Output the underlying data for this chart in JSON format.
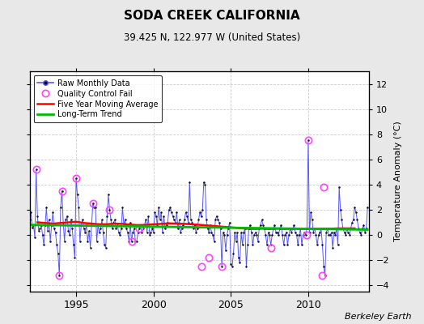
{
  "title": "SODA CREEK CALIFORNIA",
  "subtitle": "39.425 N, 122.977 W (United States)",
  "ylabel_right": "Temperature Anomaly (°C)",
  "attribution": "Berkeley Earth",
  "xlim": [
    1992.0,
    2013.92
  ],
  "ylim": [
    -4.5,
    13.0
  ],
  "yticks": [
    -4,
    -2,
    0,
    2,
    4,
    6,
    8,
    10,
    12
  ],
  "xticks": [
    1995,
    2000,
    2005,
    2010
  ],
  "bg_color": "#e8e8e8",
  "plot_bg_color": "#ffffff",
  "raw_color": "#5555ff",
  "marker_color": "#111111",
  "qc_color": "#ff44ff",
  "ma_color": "#ff0000",
  "trend_color": "#00bb00",
  "raw_data_x": [
    1992.0,
    1992.083,
    1992.167,
    1992.25,
    1992.333,
    1992.417,
    1992.5,
    1992.583,
    1992.667,
    1992.75,
    1992.833,
    1992.917,
    1993.0,
    1993.083,
    1993.167,
    1993.25,
    1993.333,
    1993.417,
    1993.5,
    1993.583,
    1993.667,
    1993.75,
    1993.833,
    1993.917,
    1994.0,
    1994.083,
    1994.167,
    1994.25,
    1994.333,
    1994.417,
    1994.5,
    1994.583,
    1994.667,
    1994.75,
    1994.833,
    1994.917,
    1995.0,
    1995.083,
    1995.167,
    1995.25,
    1995.333,
    1995.417,
    1995.5,
    1995.583,
    1995.667,
    1995.75,
    1995.833,
    1995.917,
    1996.0,
    1996.083,
    1996.167,
    1996.25,
    1996.333,
    1996.417,
    1996.5,
    1996.583,
    1996.667,
    1996.75,
    1996.833,
    1996.917,
    1997.0,
    1997.083,
    1997.167,
    1997.25,
    1997.333,
    1997.417,
    1997.5,
    1997.583,
    1997.667,
    1997.75,
    1997.833,
    1997.917,
    1998.0,
    1998.083,
    1998.167,
    1998.25,
    1998.333,
    1998.417,
    1998.5,
    1998.583,
    1998.667,
    1998.75,
    1998.833,
    1998.917,
    1999.0,
    1999.083,
    1999.167,
    1999.25,
    1999.333,
    1999.417,
    1999.5,
    1999.583,
    1999.667,
    1999.75,
    1999.833,
    1999.917,
    2000.0,
    2000.083,
    2000.167,
    2000.25,
    2000.333,
    2000.417,
    2000.5,
    2000.583,
    2000.667,
    2000.75,
    2000.833,
    2000.917,
    2001.0,
    2001.083,
    2001.167,
    2001.25,
    2001.333,
    2001.417,
    2001.5,
    2001.583,
    2001.667,
    2001.75,
    2001.833,
    2001.917,
    2002.0,
    2002.083,
    2002.167,
    2002.25,
    2002.333,
    2002.417,
    2002.5,
    2002.583,
    2002.667,
    2002.75,
    2002.833,
    2002.917,
    2003.0,
    2003.083,
    2003.167,
    2003.25,
    2003.333,
    2003.417,
    2003.5,
    2003.583,
    2003.667,
    2003.75,
    2003.833,
    2003.917,
    2004.0,
    2004.083,
    2004.167,
    2004.25,
    2004.333,
    2004.417,
    2004.5,
    2004.583,
    2004.667,
    2004.75,
    2004.833,
    2004.917,
    2005.0,
    2005.083,
    2005.167,
    2005.25,
    2005.333,
    2005.417,
    2005.5,
    2005.583,
    2005.667,
    2005.75,
    2005.833,
    2005.917,
    2006.0,
    2006.083,
    2006.167,
    2006.25,
    2006.333,
    2006.417,
    2006.5,
    2006.583,
    2006.667,
    2006.75,
    2006.833,
    2006.917,
    2007.0,
    2007.083,
    2007.167,
    2007.25,
    2007.333,
    2007.417,
    2007.5,
    2007.583,
    2007.667,
    2007.75,
    2007.833,
    2007.917,
    2008.0,
    2008.083,
    2008.167,
    2008.25,
    2008.333,
    2008.417,
    2008.5,
    2008.583,
    2008.667,
    2008.75,
    2008.833,
    2008.917,
    2009.0,
    2009.083,
    2009.167,
    2009.25,
    2009.333,
    2009.417,
    2009.5,
    2009.583,
    2009.667,
    2009.75,
    2009.833,
    2009.917,
    2010.0,
    2010.083,
    2010.167,
    2010.25,
    2010.333,
    2010.417,
    2010.5,
    2010.583,
    2010.667,
    2010.75,
    2010.833,
    2010.917,
    2011.0,
    2011.083,
    2011.167,
    2011.25,
    2011.333,
    2011.417,
    2011.5,
    2011.583,
    2011.667,
    2011.75,
    2011.833,
    2011.917,
    2012.0,
    2012.083,
    2012.167,
    2012.25,
    2012.333,
    2012.417,
    2012.5,
    2012.583,
    2012.667,
    2012.75,
    2012.833,
    2012.917,
    2013.0,
    2013.083,
    2013.167,
    2013.25,
    2013.333,
    2013.417,
    2013.5,
    2013.583,
    2013.667,
    2013.75,
    2013.833
  ],
  "raw_data_y": [
    1.2,
    1.8,
    0.6,
    0.8,
    -0.2,
    5.2,
    1.5,
    0.3,
    0.5,
    0.8,
    0.0,
    -0.8,
    0.8,
    2.2,
    0.3,
    1.2,
    -0.5,
    0.8,
    1.8,
    0.5,
    0.2,
    -0.8,
    -1.5,
    -3.2,
    2.2,
    3.5,
    1.0,
    -0.5,
    1.2,
    1.5,
    0.3,
    0.0,
    1.2,
    0.5,
    -0.8,
    -1.8,
    4.5,
    3.2,
    2.2,
    -0.5,
    0.8,
    1.2,
    0.5,
    0.2,
    0.8,
    -0.5,
    0.3,
    -1.0,
    0.8,
    2.5,
    2.2,
    2.2,
    -0.5,
    0.8,
    0.2,
    0.5,
    1.2,
    0.2,
    -0.8,
    -1.0,
    1.5,
    3.2,
    2.0,
    1.2,
    0.5,
    1.0,
    1.2,
    0.5,
    0.8,
    0.2,
    0.0,
    0.5,
    2.2,
    0.8,
    1.2,
    0.5,
    0.2,
    -0.5,
    1.0,
    -0.5,
    0.2,
    0.5,
    -0.5,
    -0.5,
    0.2,
    0.5,
    0.8,
    0.2,
    0.5,
    0.8,
    1.2,
    0.2,
    1.5,
    0.0,
    0.2,
    0.5,
    0.2,
    1.8,
    1.5,
    0.8,
    2.2,
    1.2,
    1.8,
    0.2,
    1.5,
    0.5,
    0.8,
    1.0,
    2.0,
    2.2,
    1.8,
    1.5,
    1.2,
    1.0,
    1.8,
    0.5,
    1.2,
    0.2,
    0.5,
    0.8,
    1.2,
    1.8,
    1.5,
    1.0,
    4.2,
    1.2,
    1.0,
    0.5,
    0.8,
    0.2,
    0.5,
    1.2,
    1.8,
    1.5,
    2.0,
    4.2,
    4.0,
    1.2,
    0.5,
    0.2,
    0.8,
    0.2,
    0.0,
    -0.5,
    1.2,
    1.5,
    1.2,
    1.0,
    0.5,
    -2.5,
    0.2,
    0.0,
    -1.2,
    0.0,
    0.5,
    1.0,
    -2.3,
    -2.5,
    -1.5,
    0.2,
    -0.5,
    0.2,
    -1.8,
    -2.2,
    0.2,
    -0.8,
    0.2,
    0.5,
    -2.5,
    -0.8,
    0.5,
    0.8,
    0.2,
    -0.8,
    0.0,
    0.2,
    0.0,
    -0.5,
    0.5,
    0.8,
    1.2,
    0.8,
    0.5,
    0.0,
    -0.8,
    0.2,
    0.0,
    -0.8,
    0.0,
    0.5,
    0.8,
    0.2,
    0.2,
    0.0,
    0.5,
    0.8,
    0.0,
    -0.8,
    0.0,
    0.2,
    -0.8,
    0.0,
    0.5,
    0.2,
    0.5,
    0.8,
    0.2,
    0.0,
    -0.8,
    0.0,
    0.5,
    -0.8,
    0.0,
    0.2,
    0.0,
    0.5,
    7.5,
    0.2,
    1.8,
    1.2,
    0.2,
    0.5,
    0.0,
    -0.8,
    0.0,
    0.2,
    0.5,
    -0.8,
    -2.5,
    -3.2,
    0.2,
    0.5,
    0.0,
    0.0,
    0.2,
    -1.0,
    0.2,
    0.0,
    0.5,
    -0.8,
    3.8,
    2.0,
    1.2,
    0.5,
    0.2,
    0.0,
    0.5,
    0.2,
    0.0,
    0.5,
    1.0,
    1.2,
    2.2,
    1.8,
    1.2,
    0.5,
    0.2,
    0.0,
    0.5,
    0.8,
    0.2,
    0.5,
    2.2
  ],
  "qc_fail_x": [
    1992.417,
    1993.917,
    1994.083,
    1995.0,
    1996.083,
    1997.167,
    1998.583,
    1999.083,
    2003.083,
    2003.583,
    2004.417,
    2007.583,
    2009.917,
    2010.0,
    2010.917,
    2011.0
  ],
  "qc_fail_y": [
    5.2,
    -3.2,
    3.5,
    4.5,
    2.5,
    2.0,
    -0.5,
    0.5,
    -2.5,
    -1.8,
    -2.5,
    -1.0,
    0.0,
    7.5,
    -3.2,
    3.8
  ],
  "ma_x": [
    1992.5,
    1993.0,
    1993.5,
    1994.0,
    1994.5,
    1995.0,
    1995.5,
    1996.0,
    1996.5,
    1997.0,
    1997.5,
    1998.0,
    1998.5,
    1999.0,
    1999.5,
    2000.0,
    2000.5,
    2001.0,
    2001.5,
    2002.0,
    2002.5,
    2003.0,
    2003.5,
    2004.0,
    2004.5,
    2005.0,
    2005.5,
    2006.0,
    2006.5,
    2007.0,
    2007.5,
    2008.0,
    2008.5,
    2009.0,
    2009.5,
    2010.0,
    2010.5,
    2011.0,
    2011.5,
    2012.0,
    2012.5,
    2013.0
  ],
  "ma_y": [
    1.0,
    0.95,
    0.9,
    0.95,
    1.0,
    1.05,
    0.95,
    0.9,
    0.85,
    0.85,
    0.9,
    0.88,
    0.82,
    0.78,
    0.8,
    0.85,
    0.88,
    0.92,
    0.9,
    0.88,
    0.85,
    0.8,
    0.75,
    0.7,
    0.65,
    0.6,
    0.55,
    0.5,
    0.48,
    0.5,
    0.48,
    0.5,
    0.48,
    0.5,
    0.48,
    0.5,
    0.48,
    0.5,
    0.5,
    0.52,
    0.52,
    0.52
  ],
  "trend_x": [
    1992.0,
    2013.833
  ],
  "trend_y": [
    0.8,
    0.42
  ]
}
